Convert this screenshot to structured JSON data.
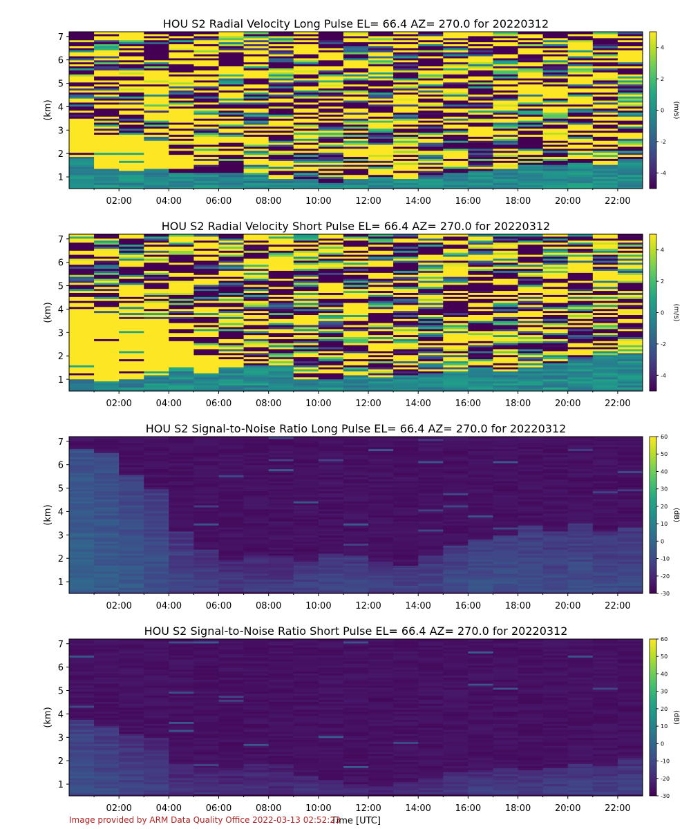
{
  "footer": {
    "credit": "Image provided by ARM Data Quality Office 2022-03-13 02:52:23"
  },
  "chart_data": [
    {
      "type": "heatmap",
      "title": "HOU S2 Radial Velocity Long Pulse EL= 66.4 AZ= 270.0 for 20220312",
      "xlabel": "",
      "ylabel": "(km)",
      "x_ticks": [
        "02:00",
        "04:00",
        "06:00",
        "08:00",
        "10:00",
        "12:00",
        "14:00",
        "16:00",
        "18:00",
        "20:00",
        "22:00"
      ],
      "x_tick_hours": [
        2,
        4,
        6,
        8,
        10,
        12,
        14,
        16,
        18,
        20,
        22
      ],
      "xlim_hours": [
        0,
        23
      ],
      "y_ticks": [
        1,
        2,
        3,
        4,
        5,
        6,
        7
      ],
      "ylim_km": [
        0.5,
        7.2
      ],
      "colorbar": {
        "label": "(m/s)",
        "ticks": [
          4,
          2,
          0,
          -2,
          -4
        ],
        "range": [
          -5,
          5
        ],
        "colormap": "viridis"
      },
      "field": "velocity",
      "seed": 11,
      "chaos_top_km": [
        1.9,
        1.4,
        1.3,
        1.4,
        1.2,
        1.2,
        1.2,
        1.1,
        0.9,
        0.9,
        0.8,
        0.9,
        1.0,
        0.9,
        1.0,
        1.2,
        1.3,
        1.4,
        1.5,
        1.5,
        1.6,
        1.5,
        1.7
      ],
      "saturated_below_km": [
        3.4,
        2.8,
        2.7,
        2.6,
        0,
        0,
        0,
        0,
        0,
        0,
        0,
        0,
        0,
        0,
        0,
        0,
        0,
        0,
        0,
        0,
        0,
        0,
        0
      ]
    },
    {
      "type": "heatmap",
      "title": "HOU S2 Radial Velocity Short Pulse EL= 66.4 AZ= 270.0 for 20220312",
      "xlabel": "",
      "ylabel": "(km)",
      "x_ticks": [
        "02:00",
        "04:00",
        "06:00",
        "08:00",
        "10:00",
        "12:00",
        "14:00",
        "16:00",
        "18:00",
        "20:00",
        "22:00"
      ],
      "x_tick_hours": [
        2,
        4,
        6,
        8,
        10,
        12,
        14,
        16,
        18,
        20,
        22
      ],
      "xlim_hours": [
        0,
        23
      ],
      "y_ticks": [
        1,
        2,
        3,
        4,
        5,
        6,
        7
      ],
      "ylim_km": [
        0.5,
        7.2
      ],
      "colorbar": {
        "label": "(m/s)",
        "ticks": [
          4,
          2,
          0,
          -2,
          -4
        ],
        "range": [
          -5,
          5
        ],
        "colormap": "viridis"
      },
      "field": "velocity",
      "seed": 29,
      "chaos_top_km": [
        1.0,
        0.9,
        1.0,
        1.2,
        1.4,
        1.3,
        1.5,
        1.6,
        1.6,
        1.0,
        1.0,
        1.2,
        1.1,
        1.2,
        1.3,
        1.4,
        1.5,
        1.4,
        1.5,
        1.7,
        1.9,
        2.0,
        2.1
      ],
      "saturated_below_km": [
        4.0,
        3.7,
        3.6,
        3.4,
        2.4,
        2.1,
        2.0,
        0,
        0,
        0,
        0,
        0,
        0,
        0,
        0,
        0,
        0,
        0,
        0,
        0,
        0,
        0,
        0
      ]
    },
    {
      "type": "heatmap",
      "title": "HOU S2 Signal-to-Noise Ratio Long Pulse EL= 66.4 AZ= 270.0 for 20220312",
      "xlabel": "",
      "ylabel": "(km)",
      "x_ticks": [
        "02:00",
        "04:00",
        "06:00",
        "08:00",
        "10:00",
        "12:00",
        "14:00",
        "16:00",
        "18:00",
        "20:00",
        "22:00"
      ],
      "x_tick_hours": [
        2,
        4,
        6,
        8,
        10,
        12,
        14,
        16,
        18,
        20,
        22
      ],
      "xlim_hours": [
        0,
        23
      ],
      "y_ticks": [
        1,
        2,
        3,
        4,
        5,
        6,
        7
      ],
      "ylim_km": [
        0.5,
        7.2
      ],
      "colorbar": {
        "label": "(dB)",
        "ticks": [
          60,
          50,
          40,
          30,
          20,
          10,
          0,
          -10,
          -20,
          -30
        ],
        "range": [
          -30,
          60
        ],
        "colormap": "viridis"
      },
      "field": "snr",
      "seed": 47,
      "boundary_km": [
        6.7,
        6.5,
        5.6,
        5.0,
        3.2,
        2.4,
        2.0,
        2.1,
        2.1,
        1.9,
        2.2,
        2.1,
        1.9,
        1.7,
        2.1,
        2.6,
        2.8,
        3.0,
        3.4,
        3.2,
        3.5,
        3.2,
        3.3
      ],
      "surface_snr_db": [
        0,
        -2,
        -4,
        -6,
        -9,
        -10,
        -12,
        -12,
        -12,
        -9,
        -8,
        -8,
        -9,
        -9,
        -9,
        -7,
        -6,
        -6,
        -7,
        -8,
        -7,
        -8,
        -8
      ]
    },
    {
      "type": "heatmap",
      "title": "HOU S2 Signal-to-Noise Ratio Short Pulse EL= 66.4 AZ= 270.0 for 20220312",
      "xlabel": "Time [UTC]",
      "ylabel": "(km)",
      "x_ticks": [
        "02:00",
        "04:00",
        "06:00",
        "08:00",
        "10:00",
        "12:00",
        "14:00",
        "16:00",
        "18:00",
        "20:00",
        "22:00"
      ],
      "x_tick_hours": [
        2,
        4,
        6,
        8,
        10,
        12,
        14,
        16,
        18,
        20,
        22
      ],
      "xlim_hours": [
        0,
        23
      ],
      "y_ticks": [
        1,
        2,
        3,
        4,
        5,
        6,
        7
      ],
      "ylim_km": [
        0.5,
        7.2
      ],
      "colorbar": {
        "label": "(dB)",
        "ticks": [
          60,
          50,
          40,
          30,
          20,
          10,
          0,
          -10,
          -20,
          -30
        ],
        "range": [
          -30,
          60
        ],
        "colormap": "viridis"
      },
      "field": "snr",
      "seed": 83,
      "boundary_km": [
        3.8,
        3.5,
        3.2,
        3.0,
        1.9,
        1.8,
        1.8,
        2.0,
        1.9,
        1.4,
        1.2,
        1.0,
        0.9,
        1.1,
        1.3,
        1.5,
        1.6,
        1.7,
        1.6,
        1.7,
        1.9,
        1.8,
        2.1
      ],
      "surface_snr_db": [
        -6,
        -8,
        -10,
        -12,
        -14,
        -14,
        -15,
        -15,
        -15,
        -13,
        -13,
        -13,
        -14,
        -14,
        -14,
        -12,
        -11,
        -10,
        -10,
        -10,
        -10,
        -10,
        -10
      ]
    }
  ]
}
